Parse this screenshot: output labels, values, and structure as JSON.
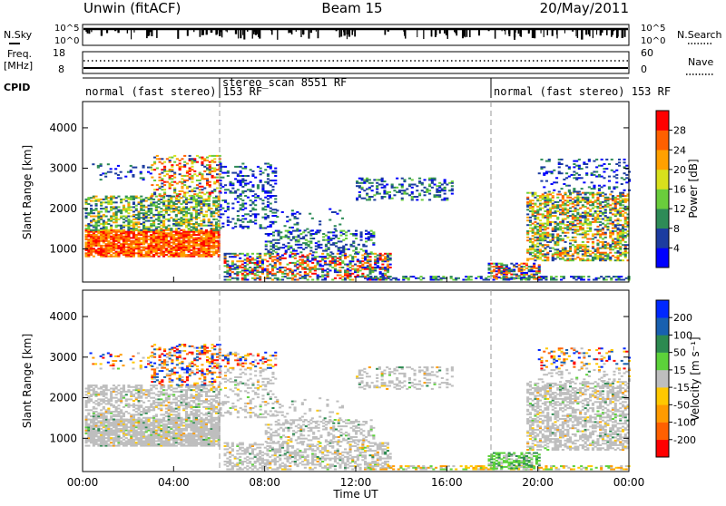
{
  "header": {
    "station": "Unwin (fitACF)",
    "beam": "Beam 15",
    "date": "20/May/2011"
  },
  "noise_panel": {
    "left_label": "N.Sky",
    "right_label": "N.Search",
    "left_ticks": [
      "10^5",
      "10^0"
    ],
    "right_ticks": [
      "10^5",
      "10^0"
    ]
  },
  "freq_panel": {
    "left_label_1": "Freq.",
    "left_label_2": "[MHz]",
    "right_label": "Nave",
    "left_ticks": [
      "18",
      "8"
    ],
    "right_ticks": [
      "60",
      "0"
    ]
  },
  "cpid_panel": {
    "label": "CPID",
    "segments": [
      {
        "text": "normal (fast stereo) 153 RF",
        "start_hour": 0
      },
      {
        "text": "stereo_scan 8551 RF",
        "start_hour": 6
      },
      {
        "text": "normal (fast stereo) 153 RF",
        "start_hour": 18
      }
    ]
  },
  "x_axis": {
    "label": "Time UT",
    "ticks": [
      "00:00",
      "04:00",
      "08:00",
      "12:00",
      "16:00",
      "20:00",
      "00:00"
    ]
  },
  "chart_data": [
    {
      "type": "heatmap",
      "quantity": "power",
      "ylabel": "Slant Range [km]",
      "yticks": [
        1000,
        2000,
        3000,
        4000
      ],
      "ylim": [
        180,
        4650
      ],
      "xlim_hours": [
        0,
        24
      ],
      "colorbar": {
        "title": "Power [dB]",
        "tick_labels": [
          "4",
          "8",
          "12",
          "16",
          "20",
          "24",
          "28"
        ],
        "range": [
          0,
          30
        ],
        "colors": [
          "#0000ff",
          "#1c3ca0",
          "#2e8b57",
          "#6acd3c",
          "#d8e01c",
          "#ffa000",
          "#ff6000",
          "#ff0000"
        ]
      }
    },
    {
      "type": "heatmap",
      "quantity": "velocity",
      "ylabel": "Slant Range [km]",
      "yticks": [
        1000,
        2000,
        3000,
        4000
      ],
      "ylim": [
        180,
        4650
      ],
      "xlim_hours": [
        0,
        24
      ],
      "colorbar": {
        "title": "Velocity [m s⁻¹]",
        "tick_labels": [
          "200",
          "100",
          "50",
          "15",
          "-15",
          "-50",
          "-100",
          "-200"
        ],
        "range": [
          -250,
          250
        ],
        "ground_scatter_color": "#bebebe",
        "colors": [
          "#0028ff",
          "#1860b0",
          "#2c8a50",
          "#5cd23a",
          "#bebebe",
          "#ffc800",
          "#ff9b00",
          "#ff6000",
          "#ff0000"
        ]
      }
    }
  ]
}
